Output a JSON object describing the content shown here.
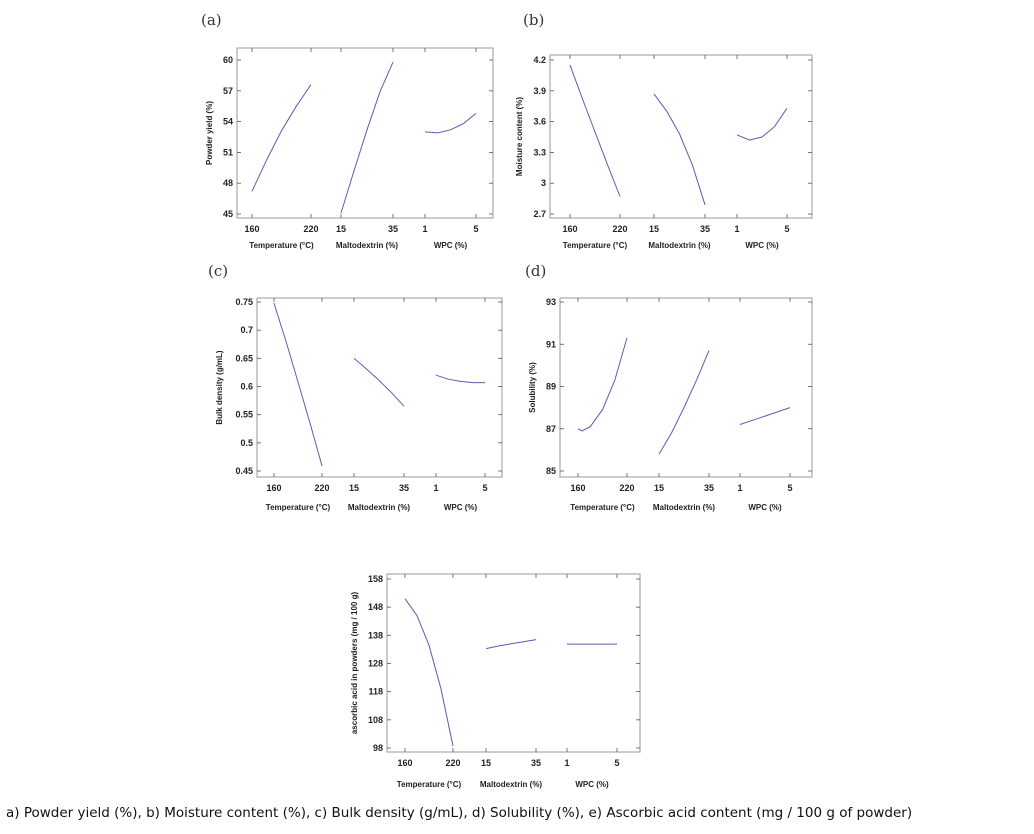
{
  "caption": "a) Powder yield (%), b) Moisture content (%), c) Bulk density (g/mL), d) Solubility (%), e) Ascorbic acid content (mg / 100 g of powder)",
  "colors": {
    "curve": "#5b5bb3",
    "frame": "#999999",
    "text": "#222222"
  },
  "chart_data": [
    {
      "type": "line",
      "panel": "(a)",
      "ylabel": "Powder yield (%)",
      "yticks": [
        45,
        48,
        51,
        54,
        57,
        60
      ],
      "ylim": [
        45,
        60
      ],
      "factors": [
        {
          "xlabel": "Temperature (°C)",
          "ticks": [
            "160",
            "220"
          ],
          "range": [
            160,
            220
          ],
          "points": [
            [
              160,
              47.2
            ],
            [
              175,
              50.3
            ],
            [
              190,
              53.1
            ],
            [
              205,
              55.5
            ],
            [
              220,
              57.6
            ]
          ]
        },
        {
          "xlabel": "Maltodextrin (%)",
          "ticks": [
            "15",
            "35"
          ],
          "range": [
            15,
            35
          ],
          "points": [
            [
              15,
              45.1
            ],
            [
              20,
              49.2
            ],
            [
              25,
              53.2
            ],
            [
              30,
              56.9
            ],
            [
              35,
              59.8
            ]
          ]
        },
        {
          "xlabel": "WPC (%)",
          "ticks": [
            "1",
            "5"
          ],
          "range": [
            1,
            5
          ],
          "points": [
            [
              1,
              53.0
            ],
            [
              2,
              52.9
            ],
            [
              3,
              53.2
            ],
            [
              4,
              53.8
            ],
            [
              5,
              54.8
            ]
          ]
        }
      ]
    },
    {
      "type": "line",
      "panel": "(b)",
      "ylabel": "Moisture content (%)",
      "yticks": [
        2.7,
        3,
        3.3,
        3.6,
        3.9,
        4.2
      ],
      "ylim": [
        2.7,
        4.2
      ],
      "factors": [
        {
          "xlabel": "Temperature (°C)",
          "ticks": [
            "160",
            "220"
          ],
          "range": [
            160,
            220
          ],
          "points": [
            [
              160,
              4.15
            ],
            [
              175,
              3.82
            ],
            [
              190,
              3.5
            ],
            [
              205,
              3.18
            ],
            [
              220,
              2.87
            ]
          ]
        },
        {
          "xlabel": "Maltodextrin (%)",
          "ticks": [
            "15",
            "35"
          ],
          "range": [
            15,
            35
          ],
          "points": [
            [
              15,
              3.87
            ],
            [
              20,
              3.7
            ],
            [
              25,
              3.48
            ],
            [
              30,
              3.18
            ],
            [
              35,
              2.79
            ]
          ]
        },
        {
          "xlabel": "WPC (%)",
          "ticks": [
            "1",
            "5"
          ],
          "range": [
            1,
            5
          ],
          "points": [
            [
              1,
              3.47
            ],
            [
              2,
              3.42
            ],
            [
              3,
              3.45
            ],
            [
              4,
              3.55
            ],
            [
              5,
              3.73
            ]
          ]
        }
      ]
    },
    {
      "type": "line",
      "panel": "(c)",
      "ylabel": "Bulk density (g/mL)",
      "yticks": [
        0.45,
        0.5,
        0.55,
        0.6,
        0.65,
        0.7,
        0.75
      ],
      "ylim": [
        0.45,
        0.75
      ],
      "factors": [
        {
          "xlabel": "Temperature (°C)",
          "ticks": [
            "160",
            "220"
          ],
          "range": [
            160,
            220
          ],
          "points": [
            [
              160,
              0.748
            ],
            [
              175,
              0.68
            ],
            [
              190,
              0.608
            ],
            [
              205,
              0.535
            ],
            [
              220,
              0.459
            ]
          ]
        },
        {
          "xlabel": "Maltodextrin (%)",
          "ticks": [
            "15",
            "35"
          ],
          "range": [
            15,
            35
          ],
          "points": [
            [
              15,
              0.65
            ],
            [
              20,
              0.631
            ],
            [
              25,
              0.611
            ],
            [
              30,
              0.589
            ],
            [
              35,
              0.565
            ]
          ]
        },
        {
          "xlabel": "WPC (%)",
          "ticks": [
            "1",
            "5"
          ],
          "range": [
            1,
            5
          ],
          "points": [
            [
              1,
              0.62
            ],
            [
              2,
              0.613
            ],
            [
              3,
              0.609
            ],
            [
              4,
              0.607
            ],
            [
              5,
              0.607
            ]
          ]
        }
      ]
    },
    {
      "type": "line",
      "panel": "(d)",
      "ylabel": "Solubility (%)",
      "yticks": [
        85,
        87,
        89,
        91,
        93
      ],
      "ylim": [
        85,
        93
      ],
      "factors": [
        {
          "xlabel": "Temperature (°C)",
          "ticks": [
            "160",
            "220"
          ],
          "range": [
            160,
            220
          ],
          "points": [
            [
              160,
              87.0
            ],
            [
              165,
              86.9
            ],
            [
              175,
              87.1
            ],
            [
              190,
              87.9
            ],
            [
              205,
              89.3
            ],
            [
              220,
              91.3
            ]
          ]
        },
        {
          "xlabel": "Maltodextrin (%)",
          "ticks": [
            "15",
            "35"
          ],
          "range": [
            15,
            35
          ],
          "points": [
            [
              15,
              85.8
            ],
            [
              20,
              86.8
            ],
            [
              25,
              88.0
            ],
            [
              30,
              89.3
            ],
            [
              35,
              90.7
            ]
          ]
        },
        {
          "xlabel": "WPC (%)",
          "ticks": [
            "1",
            "5"
          ],
          "range": [
            1,
            5
          ],
          "points": [
            [
              1,
              87.2
            ],
            [
              2,
              87.4
            ],
            [
              3,
              87.6
            ],
            [
              4,
              87.8
            ],
            [
              5,
              88.0
            ]
          ]
        }
      ]
    },
    {
      "type": "line",
      "panel": "",
      "ylabel": "ascorbic acid in powders (mg / 100 g)",
      "yticks": [
        98,
        108,
        118,
        128,
        138,
        148,
        158
      ],
      "ylim": [
        98,
        158
      ],
      "factors": [
        {
          "xlabel": "Temperature (°C)",
          "ticks": [
            "160",
            "220"
          ],
          "range": [
            160,
            220
          ],
          "points": [
            [
              160,
              151.0
            ],
            [
              175,
              145.0
            ],
            [
              190,
              134.5
            ],
            [
              205,
              119.0
            ],
            [
              220,
              98.7
            ]
          ]
        },
        {
          "xlabel": "Maltodextrin (%)",
          "ticks": [
            "15",
            "35"
          ],
          "range": [
            15,
            35
          ],
          "points": [
            [
              15,
              133.3
            ],
            [
              20,
              134.2
            ],
            [
              25,
              135.0
            ],
            [
              30,
              135.7
            ],
            [
              35,
              136.5
            ]
          ]
        },
        {
          "xlabel": "WPC (%)",
          "ticks": [
            "1",
            "5"
          ],
          "range": [
            1,
            5
          ],
          "points": [
            [
              1,
              134.9
            ],
            [
              3,
              134.9
            ],
            [
              5,
              134.9
            ]
          ]
        }
      ]
    }
  ]
}
